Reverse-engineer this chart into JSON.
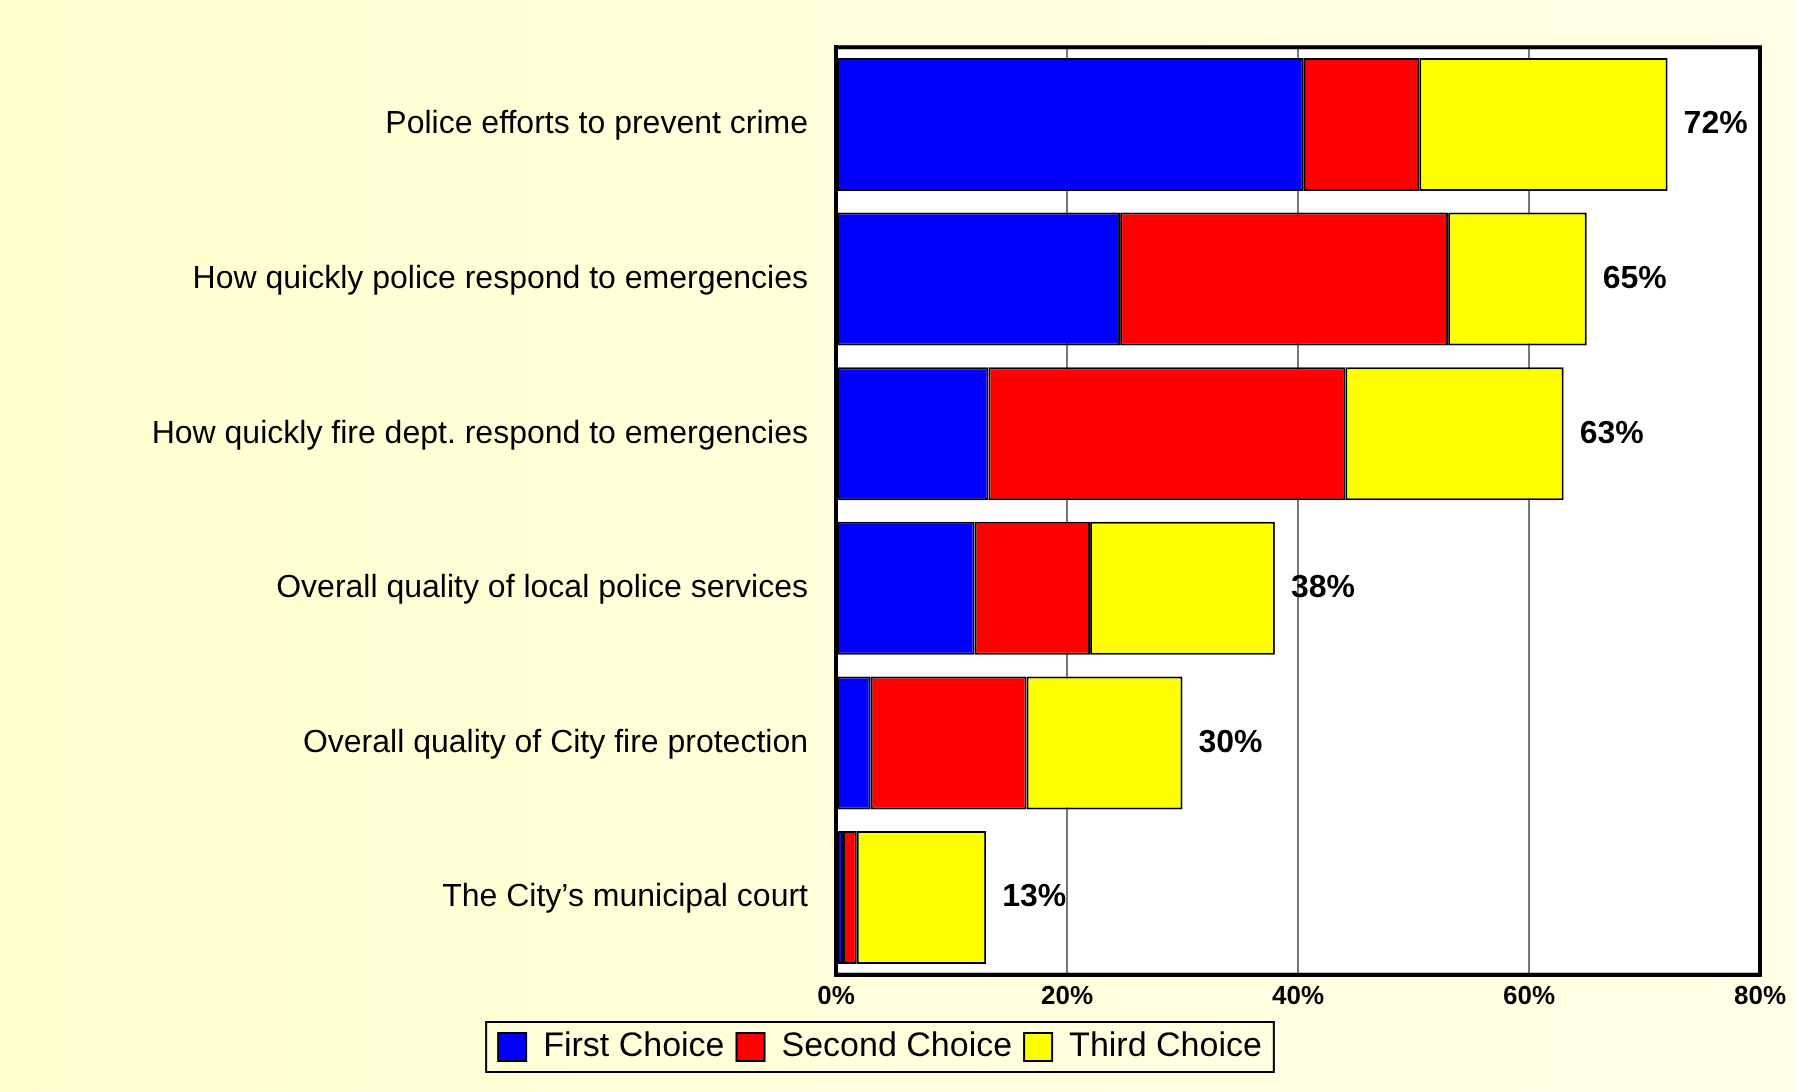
{
  "chart_data": {
    "type": "bar",
    "orientation": "horizontal",
    "stacked": true,
    "categories": [
      "Police efforts to prevent crime",
      "How quickly police respond to emergencies",
      "How quickly fire dept. respond to emergencies",
      "Overall quality of local police services",
      "Overall quality of City fire protection",
      "The City’s municipal court"
    ],
    "series": [
      {
        "name": "First Choice",
        "color": "#0000ff",
        "values": [
          40.5,
          24.6,
          13.2,
          12,
          3,
          0.6
        ]
      },
      {
        "name": "Second Choice",
        "color": "#ff0000",
        "values": [
          10,
          28.4,
          30.9,
          10,
          13.5,
          1.2
        ]
      },
      {
        "name": "Third Choice",
        "color": "#ffff00",
        "values": [
          21.5,
          12,
          18.9,
          16,
          13.5,
          11.2
        ]
      }
    ],
    "totals": [
      "72%",
      "65%",
      "63%",
      "38%",
      "30%",
      "13%"
    ],
    "xlim": [
      0,
      80
    ],
    "xticks": [
      {
        "value": 0,
        "label": "0%"
      },
      {
        "value": 20,
        "label": "20%"
      },
      {
        "value": 40,
        "label": "40%"
      },
      {
        "value": 60,
        "label": "60%"
      },
      {
        "value": 80,
        "label": "80%"
      }
    ],
    "grid": "x",
    "legend": "bottom"
  }
}
